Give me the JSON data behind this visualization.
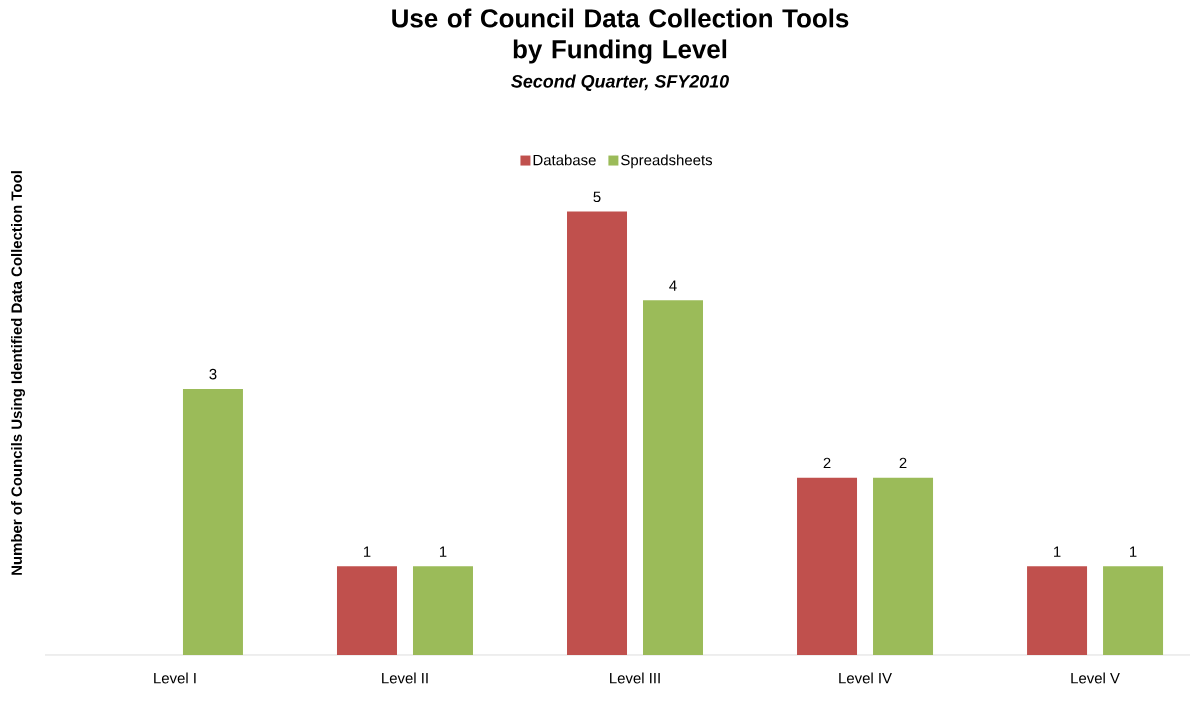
{
  "chart_data": {
    "type": "bar",
    "title": "Use of Council Data Collection Tools\nby Funding Level",
    "subtitle": "Second Quarter, SFY2010",
    "ylabel": "Number of Councils Using Identified Data Collection Tool",
    "categories": [
      "Level I",
      "Level II",
      "Level III",
      "Level IV",
      "Level V"
    ],
    "series": [
      {
        "name": "Database",
        "color": "#c0504d",
        "values": [
          null,
          1,
          5,
          2,
          1
        ]
      },
      {
        "name": "Spreadsheets",
        "color": "#9bbb59",
        "values": [
          3,
          1,
          4,
          2,
          1
        ]
      }
    ],
    "data_labels": true,
    "legend": "top"
  }
}
